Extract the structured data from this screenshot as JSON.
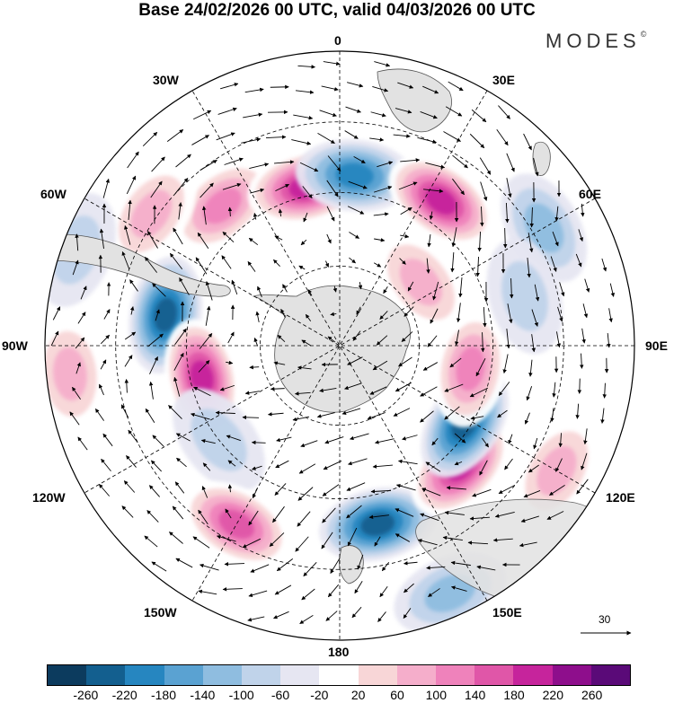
{
  "title": "Base 24/02/2026 00 UTC, valid 04/03/2026 00 UTC",
  "brand": "MODES",
  "brand_mark": "©",
  "longitude_labels": {
    "top": "0",
    "top_right": "30E",
    "upper_right": "60E",
    "right": "90E",
    "lower_right": "120E",
    "bottom_right": "150E",
    "bottom": "180",
    "bottom_left": "150W",
    "lower_left": "120W",
    "left": "90W",
    "upper_left": "60W",
    "top_left": "30W"
  },
  "wind_reference": "30",
  "colorbar": {
    "colors": [
      "#0c3b5e",
      "#135f8f",
      "#2686c0",
      "#5aa2d2",
      "#8fbde0",
      "#c0d3ea",
      "#e6e6f2",
      "#ffffff",
      "#f8d6d7",
      "#f5aecb",
      "#ef82bb",
      "#e056a8",
      "#c6249c",
      "#8e0e8c",
      "#5a0a78"
    ],
    "ticks": [
      "-260",
      "-220",
      "-180",
      "-140",
      "-100",
      "-60",
      "-20",
      "20",
      "60",
      "100",
      "140",
      "180",
      "220",
      "260"
    ]
  },
  "anomaly_field": [
    {
      "lon": -40,
      "r": 0.62,
      "v": 150
    },
    {
      "lon": -12,
      "r": 0.55,
      "v": 200
    },
    {
      "lon": 5,
      "r": 0.58,
      "v": -160
    },
    {
      "lon": 35,
      "r": 0.6,
      "v": 220
    },
    {
      "lon": 60,
      "r": 0.8,
      "v": -90
    },
    {
      "lon": -55,
      "r": 0.78,
      "v": 100
    },
    {
      "lon": -70,
      "r": 0.95,
      "v": -60
    },
    {
      "lon": -80,
      "r": 0.6,
      "v": -200
    },
    {
      "lon": -103,
      "r": 0.48,
      "v": 220
    },
    {
      "lon": -96,
      "r": 0.92,
      "v": 90
    },
    {
      "lon": -128,
      "r": 0.52,
      "v": -70
    },
    {
      "lon": -150,
      "r": 0.7,
      "v": 180
    },
    {
      "lon": 168,
      "r": 0.62,
      "v": -210
    },
    {
      "lon": 156,
      "r": 0.92,
      "v": -110
    },
    {
      "lon": 135,
      "r": 0.58,
      "v": 230
    },
    {
      "lon": 122,
      "r": 0.5,
      "v": -200
    },
    {
      "lon": 100,
      "r": 0.45,
      "v": 120
    },
    {
      "lon": 75,
      "r": 0.65,
      "v": -60
    },
    {
      "lon": 120,
      "r": 0.85,
      "v": 80
    },
    {
      "lon": 52,
      "r": 0.35,
      "v": 80
    }
  ]
}
